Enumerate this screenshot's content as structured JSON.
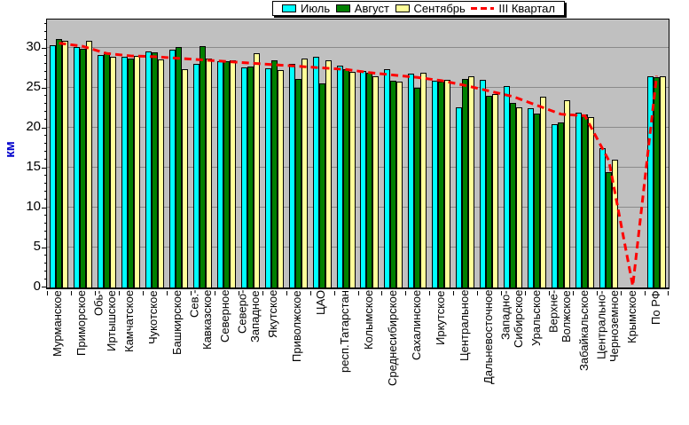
{
  "y_axis": {
    "label": "км",
    "ticks": [
      0,
      5,
      10,
      15,
      20,
      25,
      30
    ],
    "max_units": 33.5
  },
  "legend": {
    "items": [
      {
        "label": "Июль",
        "color": "#00FFFF",
        "type": "box"
      },
      {
        "label": "Август",
        "color": "#008000",
        "type": "box"
      },
      {
        "label": "Сентябрь",
        "color": "#FFFF99",
        "type": "box"
      },
      {
        "label": "III Квартал",
        "color": "#FF0000",
        "type": "dashed-line"
      }
    ]
  },
  "colors": {
    "plot_background": "#C0C0C0",
    "gridline": "#8a8a8a",
    "axis": "#000000",
    "y_label_text": "#0000CC"
  },
  "chart_data": {
    "type": "bar",
    "title": "",
    "xlabel": "",
    "ylabel": "км",
    "ylim": [
      0,
      33.5
    ],
    "grid": true,
    "legend_position": "top-center",
    "categories": [
      "Мурманское",
      "Приморское",
      "Обь-\nИртышское",
      "Камчатское",
      "Чукотское",
      "Башкирское",
      "Сев.-\nКавказское",
      "Северное",
      "Северо-\nЗападное",
      "Якутское",
      "Приволжское",
      "ЦАО",
      "респ.Татарстан",
      "Колымское",
      "Среднесибирское",
      "Сахалинское",
      "Иркутское",
      "Центральное",
      "Дальневосточное",
      "Западно-\nСибирское",
      "Уральское",
      "Верхне-\nВолжское",
      "Забайкальское",
      "Центрально-\nЧерноземное",
      "Крымское",
      "По РФ"
    ],
    "series": [
      {
        "name": "Июль",
        "kind": "bar",
        "color": "#00FFFF",
        "values": [
          30.3,
          30.1,
          29.1,
          28.9,
          29.5,
          29.8,
          28.0,
          28.3,
          27.6,
          27.4,
          28.0,
          28.9,
          27.8,
          27.1,
          27.3,
          26.8,
          25.9,
          22.5,
          26.0,
          25.2,
          22.4,
          20.4,
          21.9,
          17.4,
          0,
          26.4
        ]
      },
      {
        "name": "Август",
        "kind": "bar",
        "color": "#008000",
        "values": [
          31.1,
          29.9,
          29.4,
          28.7,
          29.4,
          30.1,
          30.2,
          28.3,
          27.7,
          28.4,
          26.1,
          25.6,
          27.3,
          26.9,
          25.9,
          25.0,
          25.8,
          26.1,
          24.0,
          23.1,
          21.8,
          20.7,
          21.7,
          14.4,
          0,
          26.3
        ]
      },
      {
        "name": "Сентябрь",
        "kind": "bar",
        "color": "#FFFF99",
        "values": [
          30.9,
          30.9,
          28.9,
          29.0,
          28.5,
          27.3,
          28.7,
          28.4,
          29.3,
          27.2,
          28.7,
          28.4,
          27.0,
          26.4,
          25.8,
          26.9,
          26.0,
          26.4,
          24.2,
          22.6,
          23.9,
          23.4,
          21.3,
          16.0,
          0,
          26.4
        ]
      },
      {
        "name": "III Квартал",
        "kind": "line",
        "style": "dashed",
        "color": "#FF0000",
        "values": [
          30.6,
          30.2,
          29.3,
          29.0,
          28.9,
          28.7,
          28.5,
          28.3,
          28.1,
          27.9,
          27.7,
          27.5,
          27.3,
          26.9,
          26.6,
          26.3,
          25.9,
          25.3,
          24.6,
          23.9,
          22.8,
          21.7,
          21.5,
          15.9,
          0.2,
          26.5
        ]
      }
    ]
  }
}
